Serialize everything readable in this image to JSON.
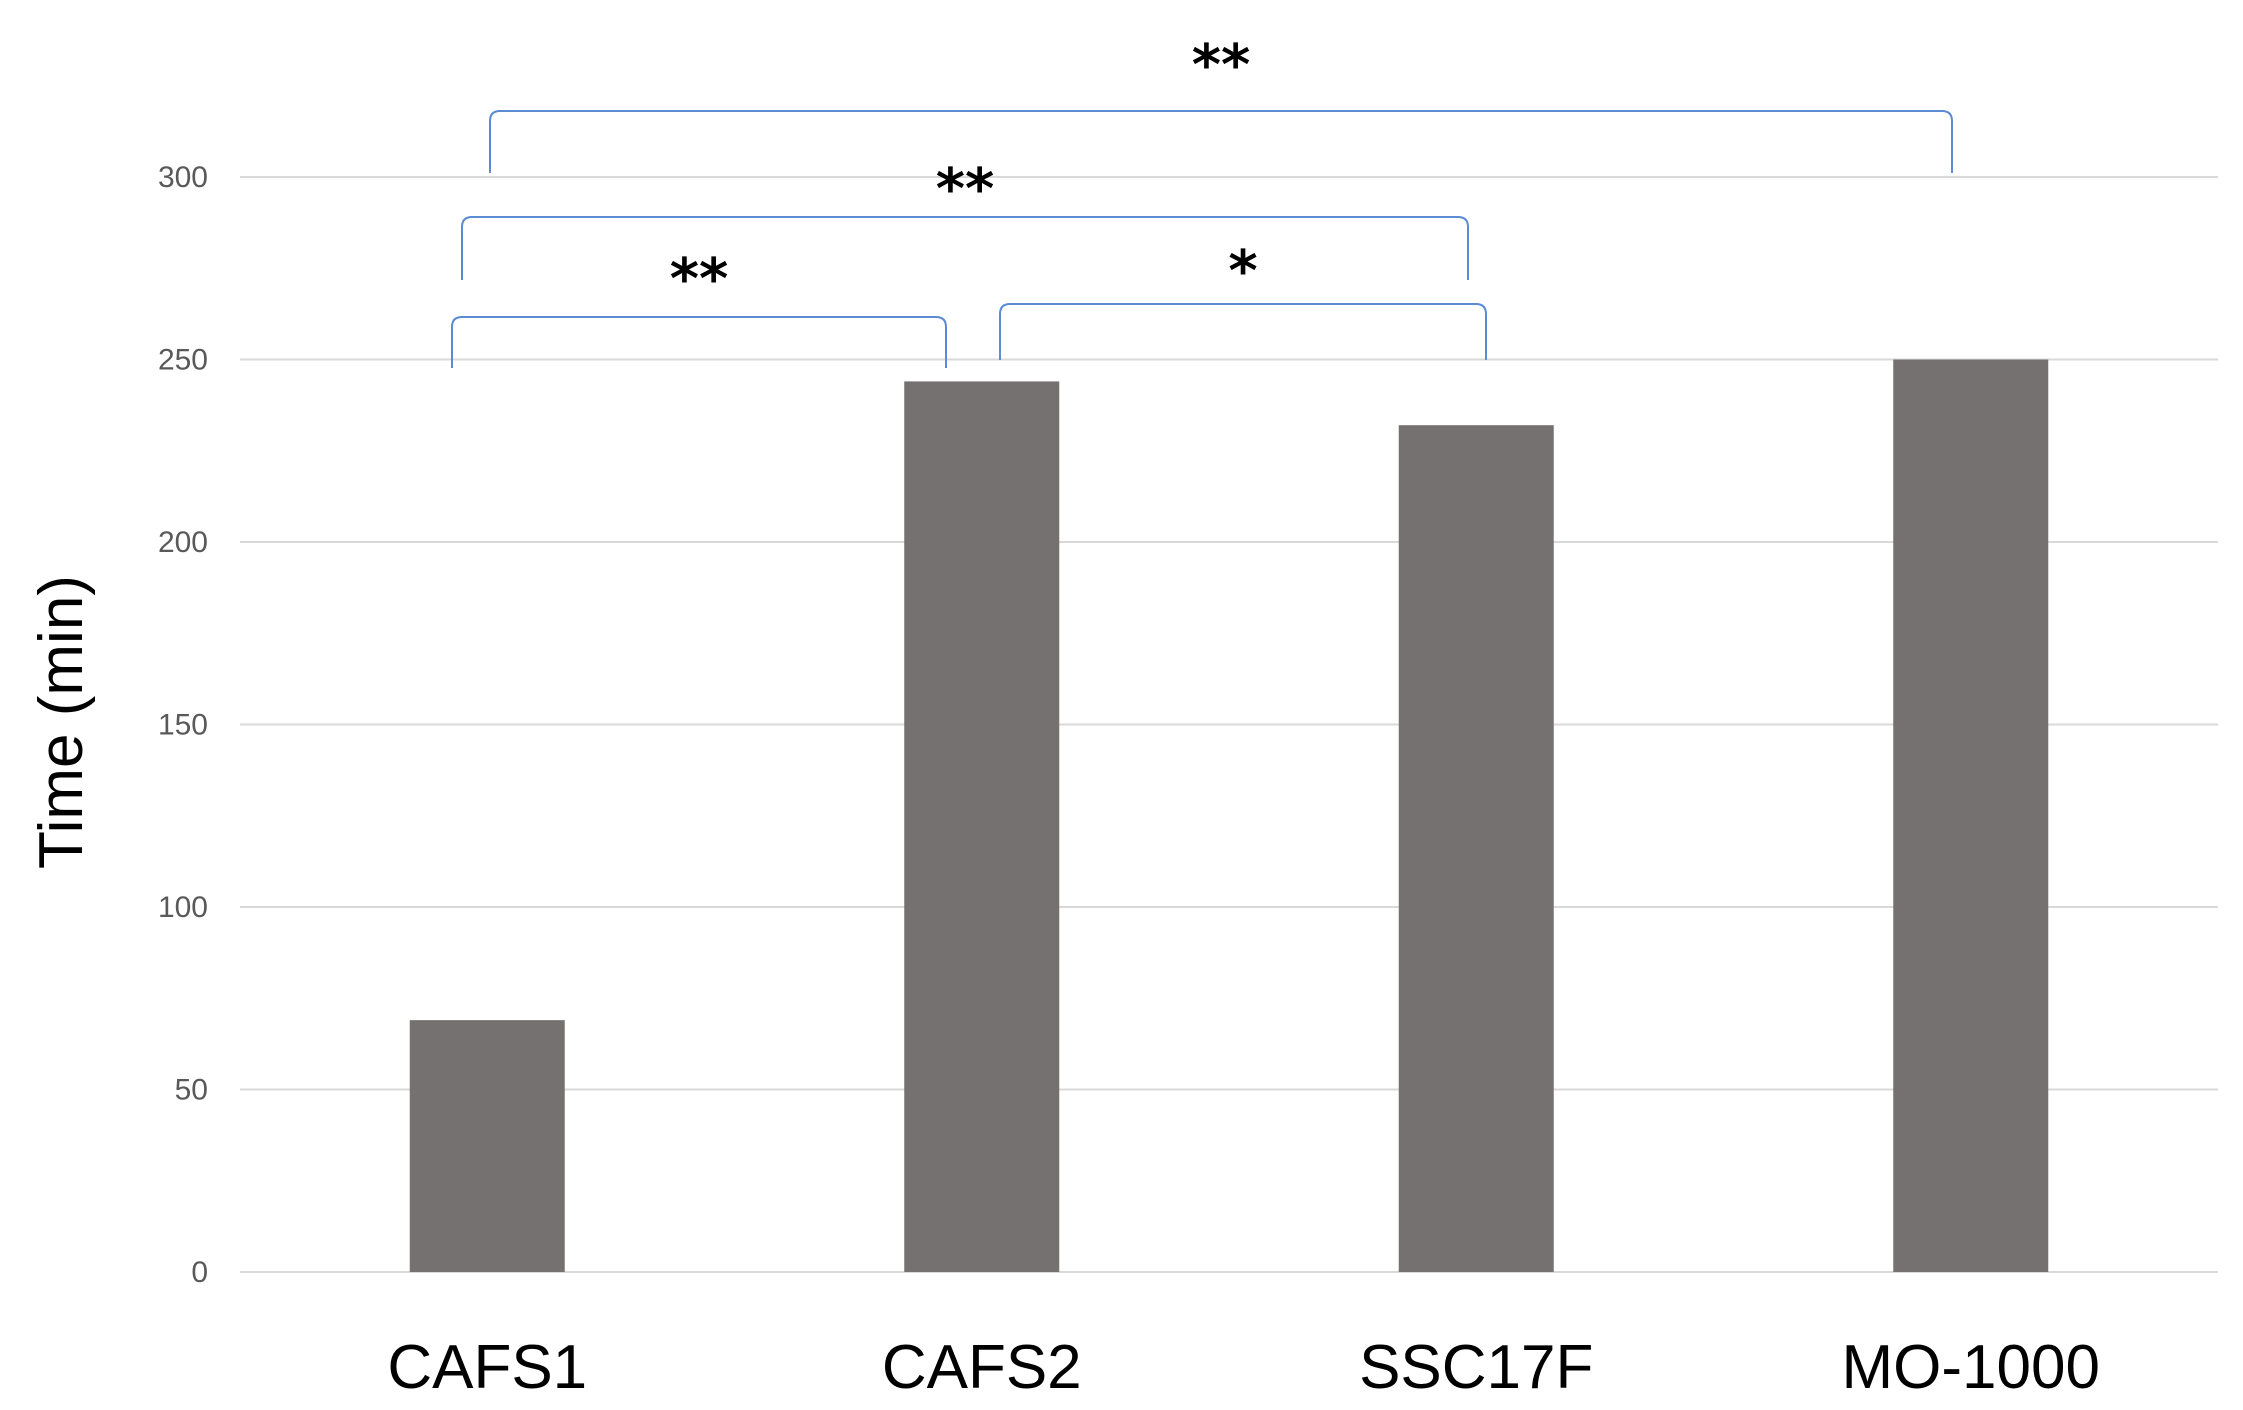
{
  "chart_data": {
    "type": "bar",
    "title": "",
    "xlabel": "",
    "ylabel": "Time (min)",
    "categories": [
      "CAFS1",
      "CAFS2",
      "SSC17F",
      "MO-1000"
    ],
    "values": [
      69,
      244,
      232,
      250
    ],
    "ylim": [
      0,
      300
    ],
    "yticks": [
      0,
      50,
      100,
      150,
      200,
      250,
      300
    ],
    "grid": true,
    "legend": "none",
    "bar_color": "#767171",
    "grid_color": "#d9d9d9",
    "bracket_color": "#5b8bd5",
    "significance": [
      {
        "from": "CAFS1",
        "to": "CAFS2",
        "label": "**"
      },
      {
        "from": "CAFS2",
        "to": "SSC17F",
        "label": "*"
      },
      {
        "from": "CAFS1",
        "to": "SSC17F",
        "label": "**"
      },
      {
        "from": "CAFS1",
        "to": "MO-1000",
        "label": "**"
      }
    ]
  }
}
